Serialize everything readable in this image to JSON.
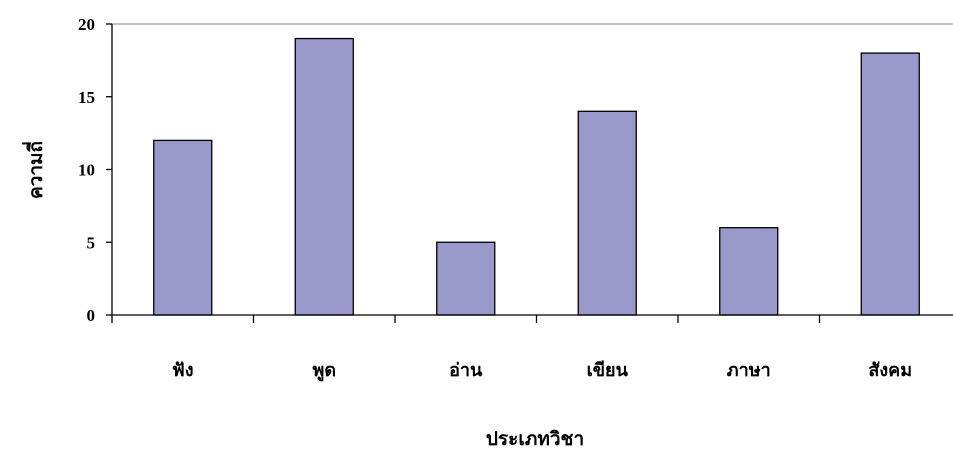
{
  "chart_data": {
    "type": "bar",
    "categories": [
      "ฟัง",
      "พูด",
      "อ่าน",
      "เขียน",
      "ภาษา",
      "สังคม"
    ],
    "values": [
      12,
      19,
      5,
      14,
      6,
      18
    ],
    "xlabel": "ประเภทวิชา",
    "ylabel": "ความถี่",
    "ylim": [
      0,
      20
    ],
    "yticks": [
      0,
      5,
      10,
      15,
      20
    ],
    "grid": false,
    "bar_color": "#9999cc",
    "bar_stroke": "#000000"
  }
}
